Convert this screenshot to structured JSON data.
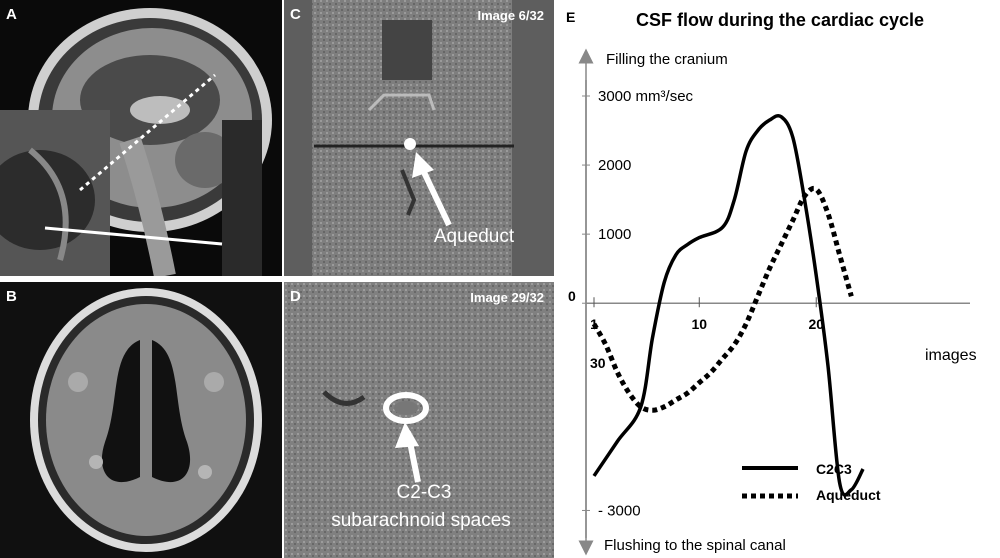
{
  "panels": {
    "a": {
      "label": "A"
    },
    "b": {
      "label": "B"
    },
    "c": {
      "label": "C",
      "image_tag": "Image 6/32",
      "annotation": "Aqueduct"
    },
    "d": {
      "label": "D",
      "image_tag": "Image 29/32",
      "annotation_line1": "C2-C3",
      "annotation_line2": "subarachnoid spaces"
    },
    "e": {
      "label": "E"
    }
  },
  "chart_data": {
    "type": "line",
    "title": "CSF flow during the cardiac cycle",
    "ylabel_top": "Filling the cranium",
    "ylabel_bottom": "Flushing to the spinal canal",
    "xlabel": "images",
    "ylim": [
      -3500,
      4100
    ],
    "xlim": [
      1,
      34
    ],
    "y_ticks": [
      {
        "value": 3000,
        "label": "3000 mm³/sec"
      },
      {
        "value": 2000,
        "label": "2000"
      },
      {
        "value": 1000,
        "label": "1000"
      },
      {
        "value": 0,
        "label": "0"
      },
      {
        "value": -3000,
        "label": "- 3000"
      }
    ],
    "x_ticks": [
      {
        "value": 1,
        "label": "1"
      },
      {
        "value": 10,
        "label": "10"
      },
      {
        "value": 20,
        "label": "20"
      }
    ],
    "x_extra_label": "30",
    "grid": false,
    "legend_position": "bottom-right",
    "series": [
      {
        "name": "C2C3",
        "style": "solid",
        "color": "#000000",
        "x": [
          1,
          3,
          5,
          6,
          7,
          8,
          9,
          10,
          12,
          13,
          14,
          15,
          16,
          17,
          18,
          19,
          20,
          21,
          22,
          23,
          24
        ],
        "y": [
          -2500,
          -2000,
          -1500,
          -500,
          300,
          700,
          850,
          950,
          1100,
          1500,
          2200,
          2500,
          2650,
          2700,
          2400,
          1500,
          400,
          -900,
          -2600,
          -2700,
          -2400
        ]
      },
      {
        "name": "Aqueduct",
        "style": "dashed",
        "color": "#000000",
        "x": [
          1,
          2,
          3,
          4,
          5,
          6,
          7,
          8,
          9,
          10,
          11,
          12,
          13,
          14,
          15,
          16,
          17,
          18,
          19,
          20,
          21,
          22,
          23
        ],
        "y": [
          -300,
          -600,
          -1000,
          -1300,
          -1500,
          -1550,
          -1500,
          -1400,
          -1300,
          -1150,
          -1000,
          -800,
          -600,
          -300,
          100,
          500,
          850,
          1200,
          1550,
          1650,
          1300,
          700,
          100
        ]
      }
    ]
  }
}
